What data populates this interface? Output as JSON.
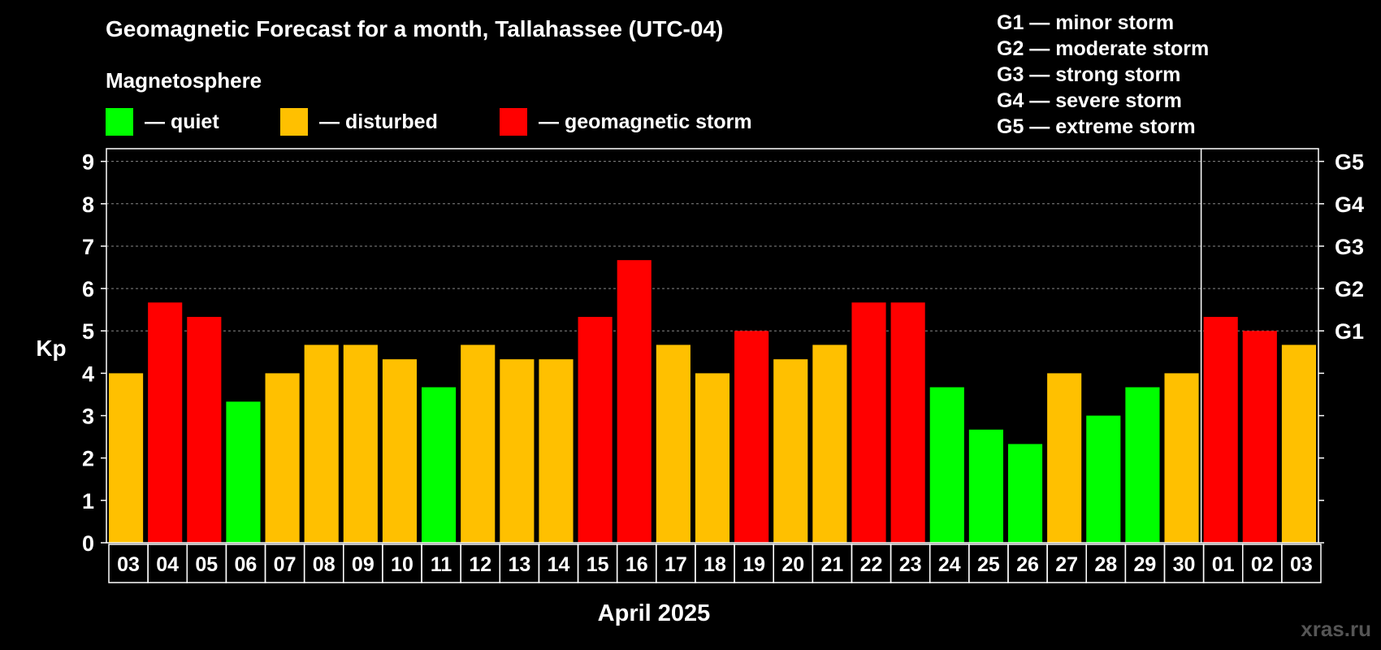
{
  "title": "Geomagnetic Forecast for a month, Tallahassee (UTC-04)",
  "subtitle": "Magnetosphere",
  "legend": [
    {
      "label": "— quiet",
      "color": "#00ff00"
    },
    {
      "label": "— disturbed",
      "color": "#ffc000"
    },
    {
      "label": "— geomagnetic storm",
      "color": "#ff0000"
    }
  ],
  "storm_legend": [
    "G1 — minor storm",
    "G2 — moderate storm",
    "G3 — strong storm",
    "G4 — severe storm",
    "G5 — extreme storm"
  ],
  "watermark": "xras.ru",
  "colors": {
    "quiet": "#00ff00",
    "disturbed": "#ffc000",
    "storm": "#ff0000",
    "background": "#000000",
    "axis": "#ffffff"
  },
  "chart_data": {
    "type": "bar",
    "title": "Geomagnetic Forecast for a month, Tallahassee (UTC-04)",
    "xlabel": "April 2025",
    "ylabel": "Kp",
    "ylim": [
      0,
      9.3
    ],
    "yticks": [
      0,
      1,
      2,
      3,
      4,
      5,
      6,
      7,
      8,
      9
    ],
    "right_ticks": [
      {
        "value": 5,
        "label": "G1"
      },
      {
        "value": 6,
        "label": "G2"
      },
      {
        "value": 7,
        "label": "G3"
      },
      {
        "value": 8,
        "label": "G4"
      },
      {
        "value": 9,
        "label": "G5"
      }
    ],
    "grid": "dashed horizontal at Kp 5-9",
    "month_divider_after_index": 27,
    "categories": [
      "03",
      "04",
      "05",
      "06",
      "07",
      "08",
      "09",
      "10",
      "11",
      "12",
      "13",
      "14",
      "15",
      "16",
      "17",
      "18",
      "19",
      "20",
      "21",
      "22",
      "23",
      "24",
      "25",
      "26",
      "27",
      "28",
      "29",
      "30",
      "01",
      "02",
      "03"
    ],
    "values": [
      4.0,
      5.67,
      5.33,
      3.33,
      4.0,
      4.67,
      4.67,
      4.33,
      3.67,
      4.67,
      4.33,
      4.33,
      5.33,
      6.67,
      4.67,
      4.0,
      5.0,
      4.33,
      4.67,
      5.67,
      5.67,
      3.67,
      2.67,
      2.33,
      4.0,
      3.0,
      3.67,
      4.0,
      5.33,
      5.0,
      4.67
    ],
    "levels": [
      "disturbed",
      "storm",
      "storm",
      "quiet",
      "disturbed",
      "disturbed",
      "disturbed",
      "disturbed",
      "quiet",
      "disturbed",
      "disturbed",
      "disturbed",
      "storm",
      "storm",
      "disturbed",
      "disturbed",
      "storm",
      "disturbed",
      "disturbed",
      "storm",
      "storm",
      "quiet",
      "quiet",
      "quiet",
      "disturbed",
      "quiet",
      "quiet",
      "disturbed",
      "storm",
      "storm",
      "disturbed"
    ]
  }
}
